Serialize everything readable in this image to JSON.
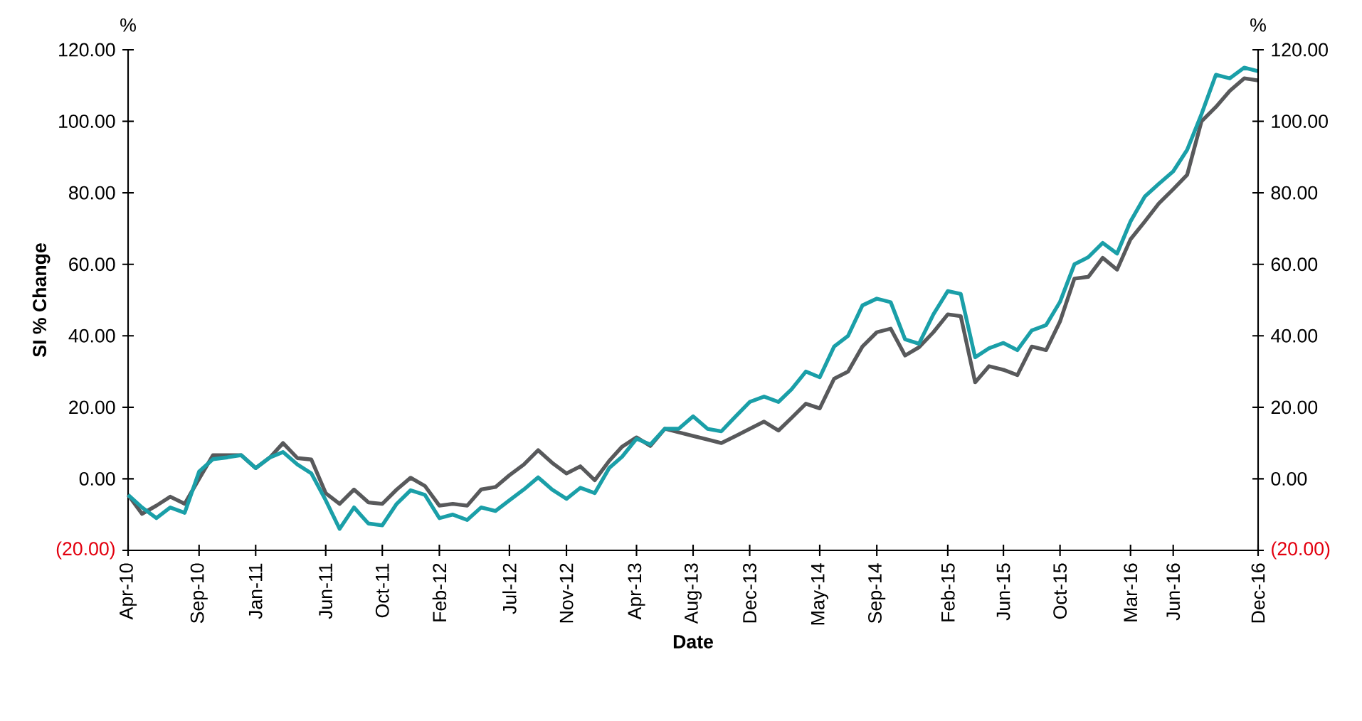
{
  "chart_data": {
    "type": "line",
    "xlabel": "Date",
    "ylabel": "SI % Change",
    "annotations": [
      "%",
      "%"
    ],
    "x": [
      "2010-04",
      "2010-05",
      "2010-06",
      "2010-07",
      "2010-08",
      "2010-09",
      "2010-10",
      "2010-11",
      "2010-12",
      "2011-01",
      "2011-02",
      "2011-03",
      "2011-04",
      "2011-05",
      "2011-06",
      "2011-07",
      "2011-08",
      "2011-09",
      "2011-10",
      "2011-11",
      "2011-12",
      "2012-01",
      "2012-02",
      "2012-03",
      "2012-04",
      "2012-05",
      "2012-06",
      "2012-07",
      "2012-08",
      "2012-09",
      "2012-10",
      "2012-11",
      "2012-12",
      "2013-01",
      "2013-02",
      "2013-03",
      "2013-04",
      "2013-05",
      "2013-06",
      "2013-07",
      "2013-08",
      "2013-09",
      "2013-10",
      "2013-11",
      "2013-12",
      "2014-01",
      "2014-02",
      "2014-03",
      "2014-04",
      "2014-05",
      "2014-06",
      "2014-07",
      "2014-08",
      "2014-09",
      "2014-10",
      "2014-11",
      "2014-12",
      "2015-01",
      "2015-02",
      "2015-03",
      "2015-04",
      "2015-05",
      "2015-06",
      "2015-07",
      "2015-08",
      "2015-09",
      "2015-10",
      "2015-11",
      "2015-12",
      "2016-01",
      "2016-02",
      "2016-03",
      "2016-04",
      "2016-05",
      "2016-06",
      "2016-07",
      "2016-08",
      "2016-09",
      "2016-10",
      "2016-11",
      "2016-12"
    ],
    "series": [
      {
        "color": "#58595b",
        "values": [
          -4.5,
          -9.8,
          -7.5,
          -5,
          -7,
          0,
          6.6,
          6.6,
          6.6,
          3,
          6,
          10,
          5.8,
          5.4,
          -4,
          -7,
          -3,
          -6.6,
          -7,
          -3,
          0.3,
          -2,
          -7.5,
          -7,
          -7.5,
          -3,
          -2.3,
          1,
          4,
          8,
          4.5,
          1.5,
          3.5,
          -0.4,
          5,
          9,
          11.6,
          9.2,
          14,
          13,
          12,
          11,
          10,
          12,
          14,
          16,
          13.5,
          17,
          21,
          19.7,
          28,
          30,
          37,
          41,
          42,
          34.5,
          36.8,
          41,
          46,
          45.5,
          27,
          31.5,
          30.5,
          29,
          37,
          36,
          44,
          56,
          56.5,
          61.8,
          58.5,
          67,
          72,
          77,
          81,
          85,
          100,
          104,
          108.5,
          112,
          111.4
        ]
      },
      {
        "color": "#1a9fa8",
        "values": [
          -4.5,
          -8,
          -11,
          -8,
          -9.5,
          2,
          5.5,
          6,
          6.6,
          3,
          6,
          7.5,
          4,
          1.5,
          -6,
          -14,
          -8,
          -12.5,
          -13,
          -7,
          -3.2,
          -4.5,
          -11,
          -10,
          -11.5,
          -8,
          -9,
          -6,
          -3,
          0.4,
          -3,
          -5.6,
          -2.5,
          -4,
          3,
          6.2,
          11.2,
          9.6,
          14,
          14,
          17.5,
          14,
          13.3,
          17.5,
          21.5,
          23,
          21.5,
          25,
          30,
          28.4,
          37,
          40,
          48.5,
          50.4,
          49.4,
          39,
          37.8,
          46,
          52.5,
          51.7,
          34,
          36.5,
          38,
          36,
          41.5,
          43,
          49.5,
          60,
          62,
          66,
          63,
          72,
          79,
          82.5,
          86,
          92,
          102,
          113,
          112,
          115,
          114
        ]
      }
    ],
    "xlim": [
      "2010-04-01",
      "2016-12-01"
    ],
    "xticks": [
      {
        "value": "2010-04-01",
        "label": "Apr-10"
      },
      {
        "value": "2010-09-01",
        "label": "Sep-10"
      },
      {
        "value": "2011-01-01",
        "label": "Jan-11"
      },
      {
        "value": "2011-06-01",
        "label": "Jun-11"
      },
      {
        "value": "2011-10-01",
        "label": "Oct-11"
      },
      {
        "value": "2012-02-01",
        "label": "Feb-12"
      },
      {
        "value": "2012-07-01",
        "label": "Jul-12"
      },
      {
        "value": "2012-11-01",
        "label": "Nov-12"
      },
      {
        "value": "2013-04-01",
        "label": "Apr-13"
      },
      {
        "value": "2013-08-01",
        "label": "Aug-13"
      },
      {
        "value": "2013-12-01",
        "label": "Dec-13"
      },
      {
        "value": "2014-05-01",
        "label": "May-14"
      },
      {
        "value": "2014-09-01",
        "label": "Sep-14"
      },
      {
        "value": "2015-02-01",
        "label": "Feb-15"
      },
      {
        "value": "2015-06-01",
        "label": "Jun-15"
      },
      {
        "value": "2015-10-01",
        "label": "Oct-15"
      },
      {
        "value": "2016-03-01",
        "label": "Mar-16"
      },
      {
        "value": "2016-06-01",
        "label": "Jun-16"
      },
      {
        "value": "2016-12-01",
        "label": "Dec-16"
      }
    ],
    "ylim": [
      -20,
      120
    ],
    "yticks": [
      {
        "value": -20,
        "label": "(20.00)"
      },
      {
        "value": 0,
        "label": "0.00"
      },
      {
        "value": 20,
        "label": "20.00"
      },
      {
        "value": 40,
        "label": "40.00"
      },
      {
        "value": 60,
        "label": "60.00"
      },
      {
        "value": 80,
        "label": "80.00"
      },
      {
        "value": 100,
        "label": "100.00"
      },
      {
        "value": 120,
        "label": "120.00"
      }
    ],
    "y2lim": [
      -20,
      120
    ],
    "y2ticks": [
      {
        "value": -20,
        "label": "(20.00)"
      },
      {
        "value": 0,
        "label": "0.00"
      },
      {
        "value": 20,
        "label": "20.00"
      },
      {
        "value": 40,
        "label": "40.00"
      },
      {
        "value": 60,
        "label": "60.00"
      },
      {
        "value": 80,
        "label": "80.00"
      },
      {
        "value": 100,
        "label": "100.00"
      },
      {
        "value": 120,
        "label": "120.00"
      }
    ],
    "grid": false
  }
}
